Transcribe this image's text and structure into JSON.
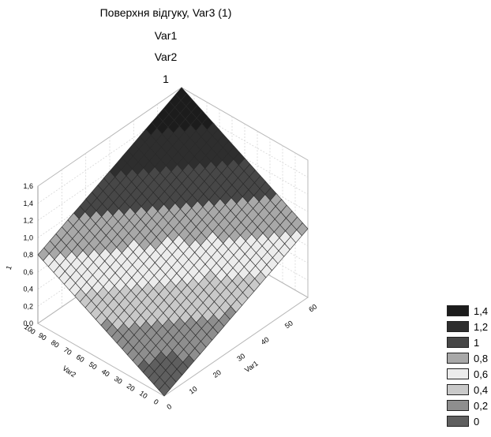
{
  "chart_data": {
    "type": "surface3d",
    "title_lines": [
      "Поверхня відгуку, Var3 (1)",
      "Var1",
      "Var2",
      "1"
    ],
    "xlabel": "Var1",
    "ylabel": "Var2",
    "zlabel": "1",
    "x_ticks": [
      "0",
      "10",
      "20",
      "30",
      "40",
      "50",
      "60"
    ],
    "y_ticks": [
      "0",
      "10",
      "20",
      "30",
      "40",
      "50",
      "60",
      "70",
      "80",
      "90",
      "100"
    ],
    "z_ticks": [
      "0,0",
      "0,2",
      "0,4",
      "0,6",
      "0,8",
      "1,0",
      "1,2",
      "1,4",
      "1,6"
    ],
    "surface_corners": [
      {
        "var1": 0,
        "var2": 0,
        "value": 0.0
      },
      {
        "var1": 60,
        "var2": 0,
        "value": 0.8
      },
      {
        "var1": 0,
        "var2": 100,
        "value": 0.8
      },
      {
        "var1": 60,
        "var2": 100,
        "value": 1.6
      }
    ],
    "legend": [
      {
        "label": "1,4",
        "color": "#1c1c1c"
      },
      {
        "label": "1,2",
        "color": "#2e2e2e"
      },
      {
        "label": "1",
        "color": "#474747"
      },
      {
        "label": "0,8",
        "color": "#a8a8a8"
      },
      {
        "label": "0,6",
        "color": "#ececec"
      },
      {
        "label": "0,4",
        "color": "#c9c9c9"
      },
      {
        "label": "0,2",
        "color": "#8e8e8e"
      },
      {
        "label": "0",
        "color": "#5f5f5f"
      }
    ]
  }
}
